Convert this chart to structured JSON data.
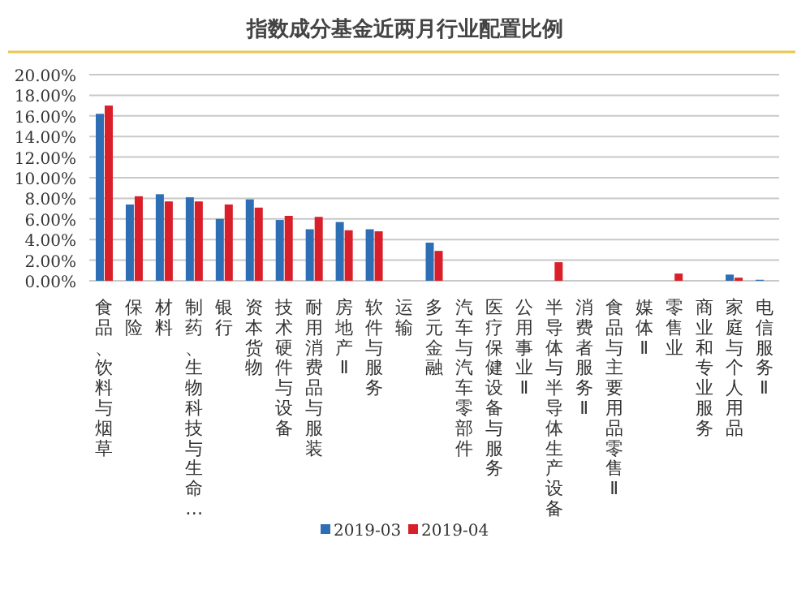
{
  "chart_data": {
    "type": "bar",
    "title": "指数成分基金近两月行业配置比例",
    "categories": [
      "食品、饮料与烟草",
      "保险",
      "材料",
      "制药、生物科技与生命…",
      "银行",
      "资本货物",
      "技术硬件与设备",
      "耐用消费品与服装",
      "房地产Ⅱ",
      "软件与服务",
      "运输",
      "多元金融",
      "汽车与汽车零部件",
      "医疗保健设备与服务",
      "公用事业Ⅱ",
      "半导体与半导体生产设备",
      "消费者服务Ⅱ",
      "食品与主要用品零售Ⅱ",
      "媒体Ⅱ",
      "零售业",
      "商业和专业服务",
      "家庭与个人用品",
      "电信服务Ⅱ"
    ],
    "series": [
      {
        "name": "2019-03",
        "color": "#2e6eb5",
        "values": [
          16.2,
          7.4,
          8.4,
          8.1,
          6.0,
          7.9,
          5.9,
          5.0,
          5.7,
          5.0,
          null,
          3.7,
          null,
          null,
          null,
          null,
          null,
          null,
          null,
          null,
          null,
          0.6,
          0.1
        ]
      },
      {
        "name": "2019-04",
        "color": "#d9202a",
        "values": [
          17.0,
          8.2,
          7.7,
          7.7,
          7.4,
          7.1,
          6.3,
          6.2,
          4.9,
          4.8,
          null,
          2.9,
          null,
          null,
          null,
          1.8,
          null,
          null,
          null,
          0.7,
          null,
          0.3,
          null
        ]
      }
    ],
    "ylim": [
      0,
      20
    ],
    "yticks": [
      {
        "value": 0,
        "label": "0.00%"
      },
      {
        "value": 2,
        "label": "2.00%"
      },
      {
        "value": 4,
        "label": "4.00%"
      },
      {
        "value": 6,
        "label": "6.00%"
      },
      {
        "value": 8,
        "label": "8.00%"
      },
      {
        "value": 10,
        "label": "10.00%"
      },
      {
        "value": 12,
        "label": "12.00%"
      },
      {
        "value": 14,
        "label": "14.00%"
      },
      {
        "value": 16,
        "label": "16.00%"
      },
      {
        "value": 18,
        "label": "18.00%"
      },
      {
        "value": 20,
        "label": "20.00%"
      }
    ],
    "grid": "y",
    "legend": "bottom"
  }
}
